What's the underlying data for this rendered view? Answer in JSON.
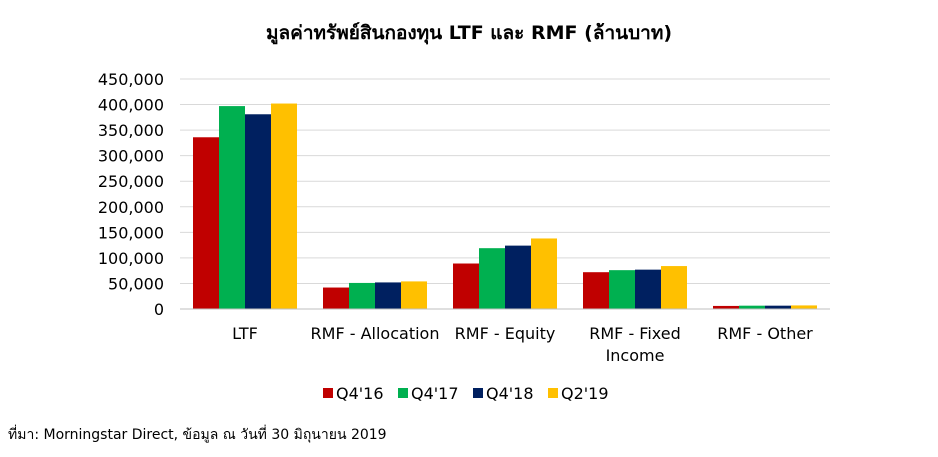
{
  "chart_data": {
    "type": "bar",
    "title": "มูลค่าทรัพย์สินกองทุน LTF และ RMF (ล้านบาท)",
    "xlabel": "",
    "ylabel": "",
    "ylim": [
      0,
      450000
    ],
    "yticks": [
      "0",
      "50,000",
      "100,000",
      "150,000",
      "200,000",
      "250,000",
      "300,000",
      "350,000",
      "400,000",
      "450,000"
    ],
    "grid": true,
    "legend_position": "bottom",
    "categories": [
      [
        "LTF"
      ],
      [
        "RMF - Allocation"
      ],
      [
        "RMF - Equity"
      ],
      [
        "RMF - Fixed",
        "Income"
      ],
      [
        "RMF - Other"
      ]
    ],
    "series": [
      {
        "name": "Q4'16",
        "color": "#c00000",
        "values": [
          336000,
          42000,
          89000,
          72000,
          6000
        ]
      },
      {
        "name": "Q4'17",
        "color": "#00b050",
        "values": [
          397000,
          51000,
          119000,
          76000,
          6500
        ]
      },
      {
        "name": "Q4'18",
        "color": "#002060",
        "values": [
          381000,
          52000,
          124000,
          77000,
          6500
        ]
      },
      {
        "name": "Q2'19",
        "color": "#ffc000",
        "values": [
          402000,
          54000,
          138000,
          84000,
          7000
        ]
      }
    ]
  },
  "source_note": "ที่มา: Morningstar Direct, ข้อมูล ณ วันที่ 30 มิถุนายน 2019"
}
